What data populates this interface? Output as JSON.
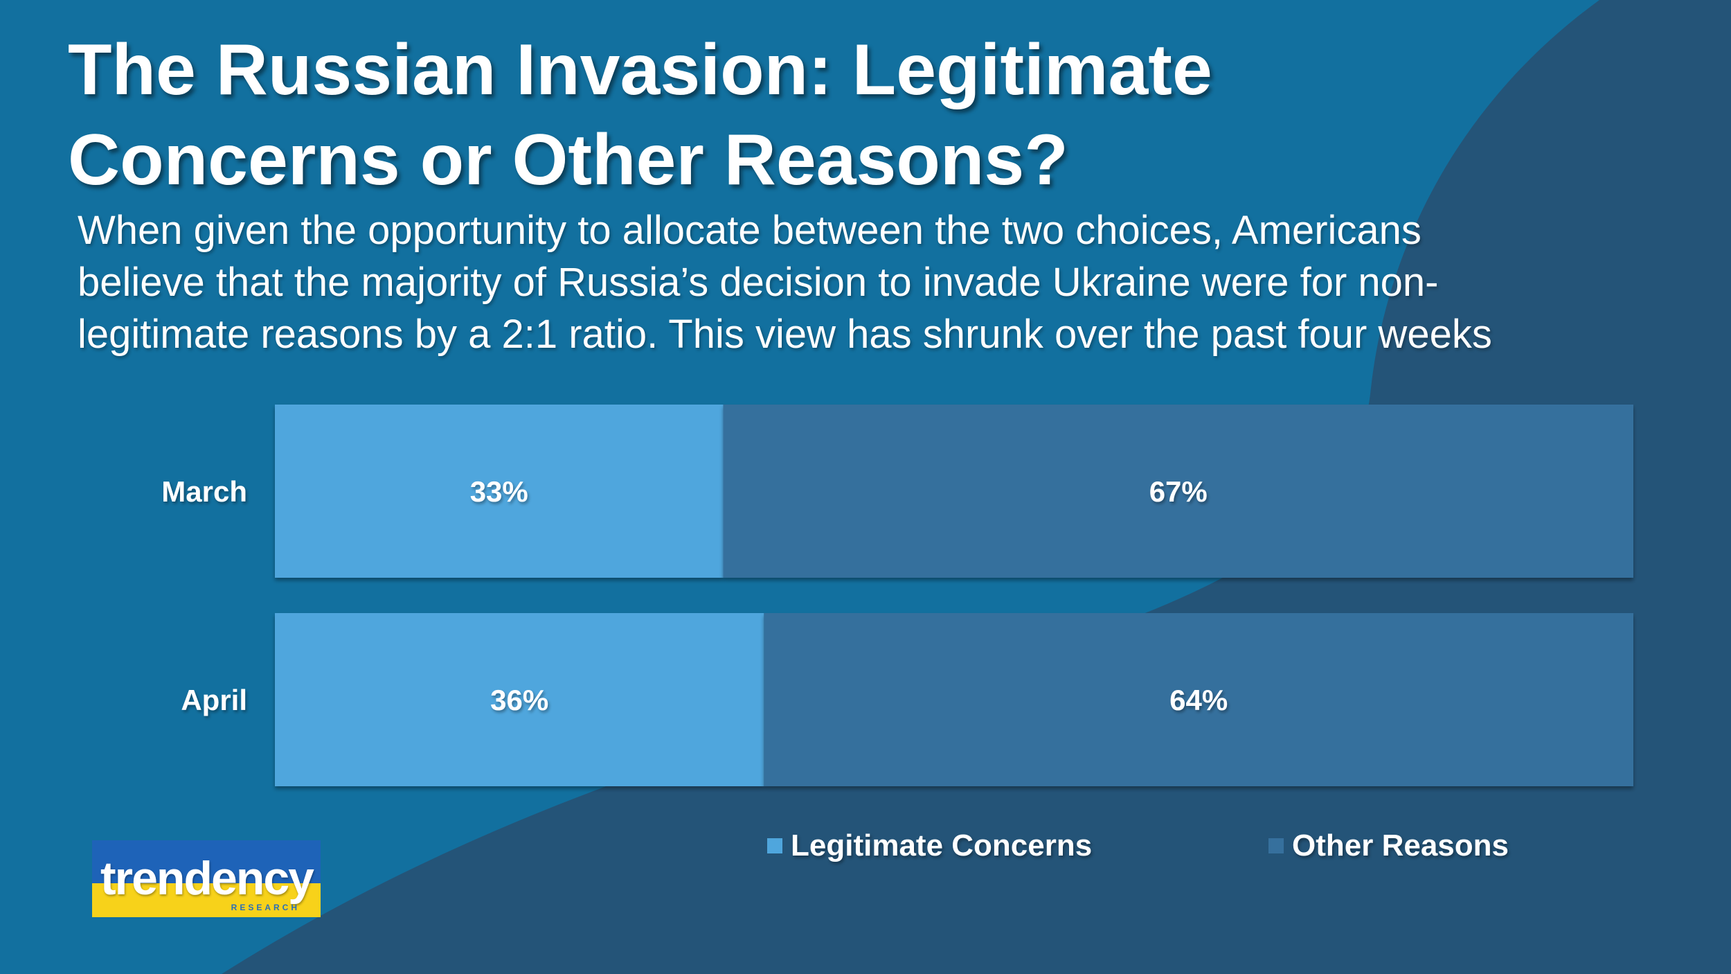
{
  "header": {
    "title_line1": "The Russian Invasion: Legitimate",
    "title_line2": "Concerns or Other Reasons?",
    "subtitle_line1": "When given the opportunity to allocate between the two choices, Americans",
    "subtitle_line2": "believe that the majority of Russia’s decision to invade Ukraine were for non-",
    "subtitle_line3": "legitimate reasons by a 2:1 ratio. This view has shrunk over the past four weeks"
  },
  "colors": {
    "background": "#12709f",
    "background_dark": "#245478",
    "legitimate": "#4fa6dd",
    "other": "#36709d"
  },
  "chart_data": {
    "type": "bar",
    "orientation": "horizontal",
    "stacked": true,
    "percent": true,
    "categories": [
      "March",
      "April"
    ],
    "series": [
      {
        "name": "Legitimate Concerns",
        "values": [
          33,
          36
        ],
        "labels": [
          "33%",
          "36%"
        ],
        "color": "#4fa6dd"
      },
      {
        "name": "Other Reasons",
        "values": [
          67,
          64
        ],
        "labels": [
          "67%",
          "64%"
        ],
        "color": "#36709d"
      }
    ],
    "xlim": [
      0,
      100
    ],
    "grid": false,
    "legend": "bottom"
  },
  "logo": {
    "word": "trendency",
    "sub": "RESEARCH"
  }
}
